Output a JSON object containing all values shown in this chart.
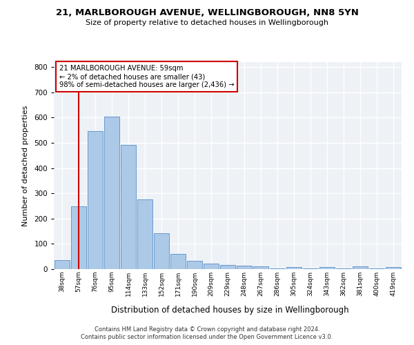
{
  "title1": "21, MARLBOROUGH AVENUE, WELLINGBOROUGH, NN8 5YN",
  "title2": "Size of property relative to detached houses in Wellingborough",
  "xlabel": "Distribution of detached houses by size in Wellingborough",
  "ylabel": "Number of detached properties",
  "categories": [
    "38sqm",
    "57sqm",
    "76sqm",
    "95sqm",
    "114sqm",
    "133sqm",
    "152sqm",
    "171sqm",
    "190sqm",
    "209sqm",
    "229sqm",
    "248sqm",
    "267sqm",
    "286sqm",
    "305sqm",
    "324sqm",
    "343sqm",
    "362sqm",
    "381sqm",
    "400sqm",
    "419sqm"
  ],
  "values": [
    35,
    248,
    548,
    603,
    493,
    277,
    143,
    60,
    32,
    22,
    17,
    14,
    10,
    4,
    8,
    4,
    8,
    4,
    10,
    3,
    8
  ],
  "bar_color": "#adc9e8",
  "bar_edge_color": "#6699cc",
  "annotation_line1": "21 MARLBOROUGH AVENUE: 59sqm",
  "annotation_line2": "← 2% of detached houses are smaller (43)",
  "annotation_line3": "98% of semi-detached houses are larger (2,436) →",
  "annotation_box_color": "#cc0000",
  "ylim": [
    0,
    820
  ],
  "yticks": [
    0,
    100,
    200,
    300,
    400,
    500,
    600,
    700,
    800
  ],
  "background_color": "#eef2f7",
  "footer1": "Contains HM Land Registry data © Crown copyright and database right 2024.",
  "footer2": "Contains public sector information licensed under the Open Government Licence v3.0."
}
